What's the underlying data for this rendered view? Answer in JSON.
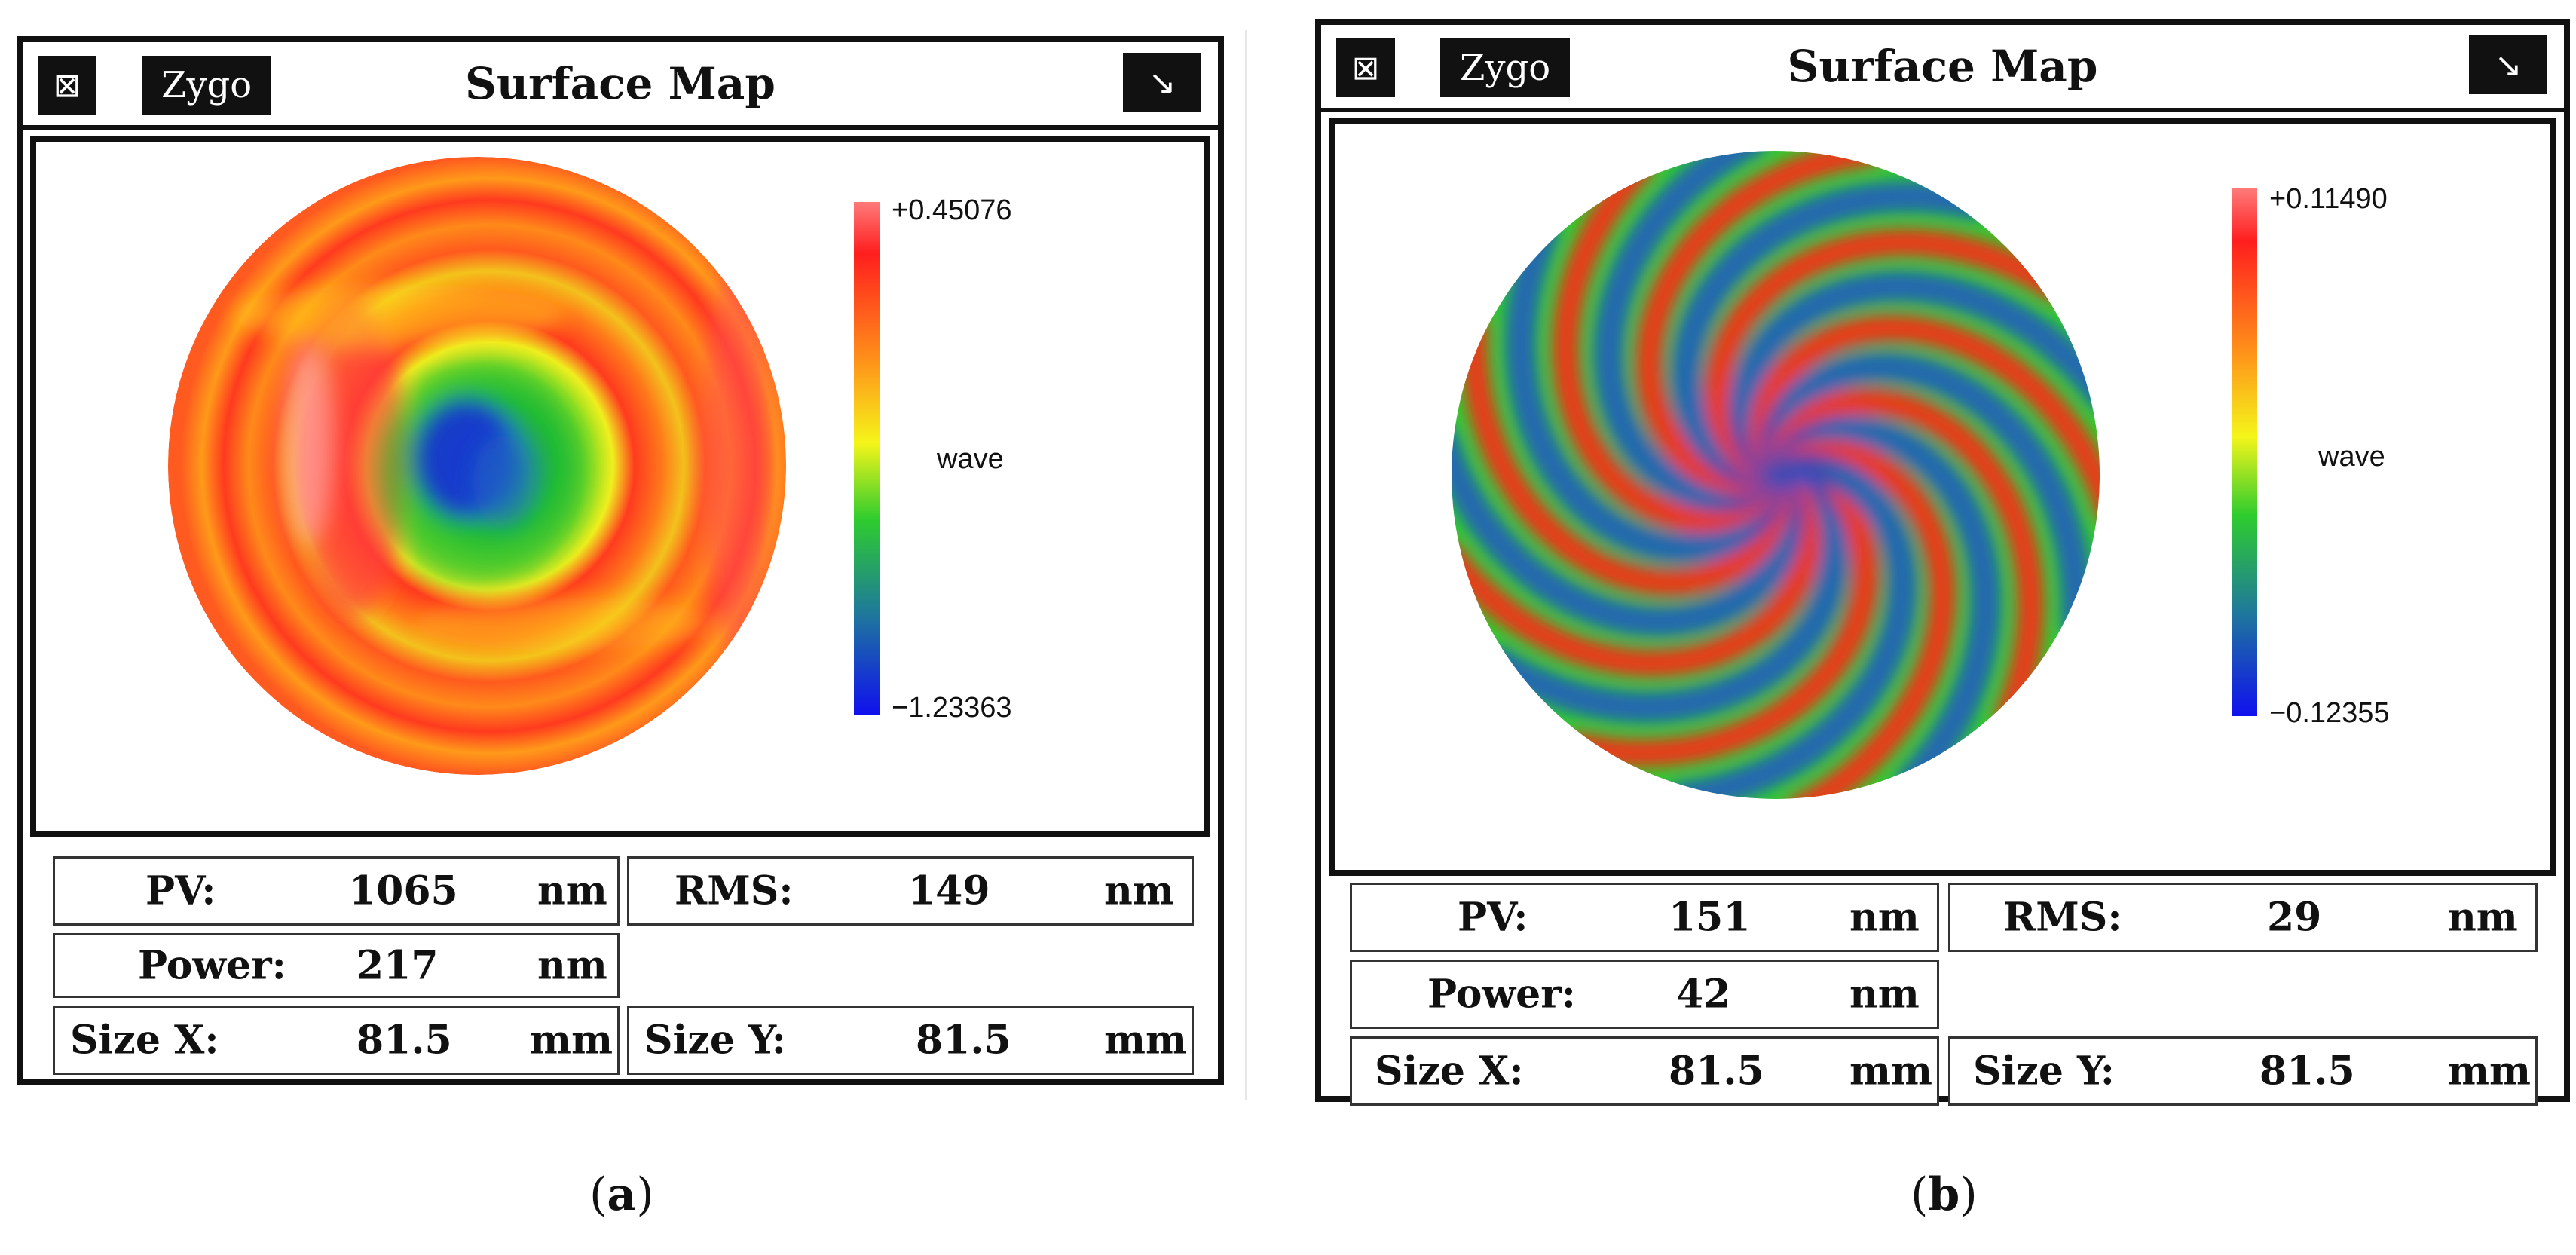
{
  "panels": [
    {
      "brand": "Zygo",
      "title": "Surface Map",
      "close_icon": "⊠",
      "expand_icon": "↘",
      "scale": {
        "max": "+0.45076",
        "min": "−1.23363",
        "unit": "wave"
      },
      "stats": {
        "pv": {
          "label": "PV:",
          "value": "1065",
          "unit": "nm"
        },
        "rms": {
          "label": "RMS:",
          "value": "149",
          "unit": "nm"
        },
        "power": {
          "label": "Power:",
          "value": "217",
          "unit": "nm"
        },
        "size_x": {
          "label": "Size X:",
          "value": "81.5",
          "unit": "mm"
        },
        "size_y": {
          "label": "Size Y:",
          "value": "81.5",
          "unit": "mm"
        }
      },
      "caption_letter": "a"
    },
    {
      "brand": "Zygo",
      "title": "Surface Map",
      "close_icon": "⊠",
      "expand_icon": "↘",
      "scale": {
        "max": "+0.11490",
        "min": "−0.12355",
        "unit": "wave"
      },
      "stats": {
        "pv": {
          "label": "PV:",
          "value": "151",
          "unit": "nm"
        },
        "rms": {
          "label": "RMS:",
          "value": "29",
          "unit": "nm"
        },
        "power": {
          "label": "Power:",
          "value": "42",
          "unit": "nm"
        },
        "size_x": {
          "label": "Size X:",
          "value": "81.5",
          "unit": "mm"
        },
        "size_y": {
          "label": "Size Y:",
          "value": "81.5",
          "unit": "mm"
        }
      },
      "caption_letter": "b"
    }
  ],
  "colors": {
    "frame": "#111111",
    "map_red": "#ff2a1a",
    "map_orange": "#ff8c1a",
    "map_yellow": "#f5f51a",
    "map_green": "#22cc22",
    "map_blue": "#1a3fcc"
  },
  "punct": {
    "open": "(",
    "close": ")"
  }
}
